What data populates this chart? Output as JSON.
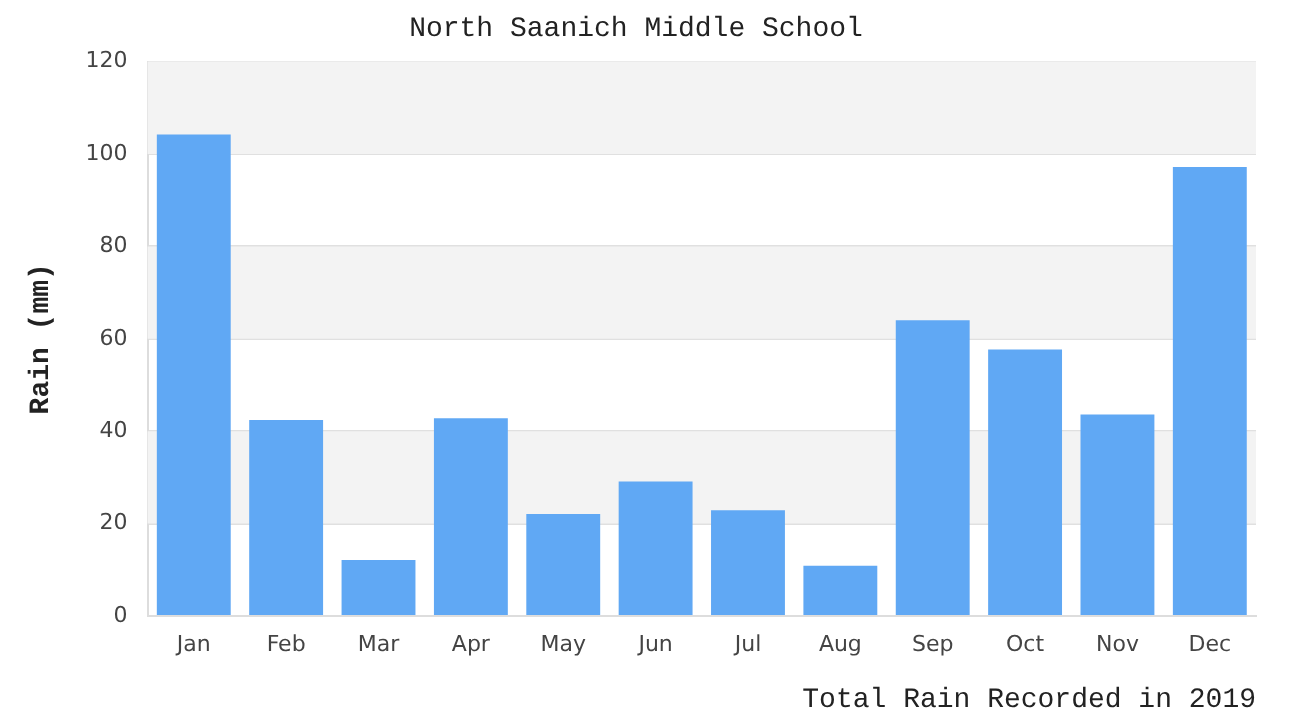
{
  "chart_data": {
    "type": "bar",
    "title": "North Saanich Middle School",
    "ylabel": "Rain (mm)",
    "xlabel": "Total Rain Recorded in 2019",
    "categories": [
      "Jan",
      "Feb",
      "Mar",
      "Apr",
      "May",
      "Jun",
      "Jul",
      "Aug",
      "Sep",
      "Oct",
      "Nov",
      "Dec"
    ],
    "values": [
      104.2,
      42.4,
      12.1,
      42.8,
      22.1,
      29.1,
      22.9,
      10.9,
      64.0,
      57.7,
      43.6,
      97.2
    ],
    "color": "#60a8f4",
    "ylim": [
      0,
      120
    ],
    "yticks": [
      0,
      20,
      40,
      60,
      80,
      100,
      120
    ],
    "grid": "y"
  }
}
